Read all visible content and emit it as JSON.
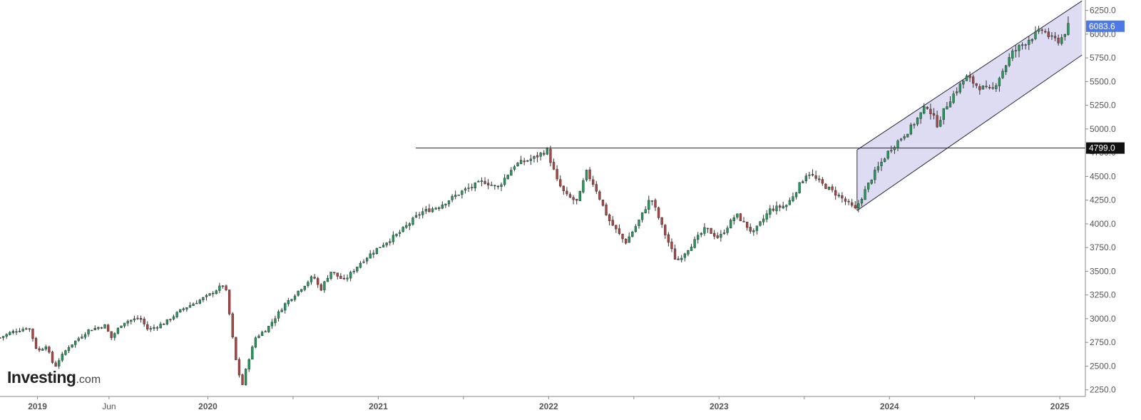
{
  "logo": {
    "main": "Investing",
    "suffix": ".com"
  },
  "colors": {
    "up": "#1e9e5a",
    "down": "#b3433e",
    "channel_fill": "#d8d6f0",
    "channel_line": "#2a2a3a",
    "hline": "#222222",
    "last_price_tag": "#4d79e8",
    "level_tag": "#111111",
    "grid_axis": "#888888"
  },
  "chart_data": {
    "type": "candlestick",
    "title": "",
    "xlabel": "",
    "ylabel": "",
    "ylim": [
      2180,
      6360
    ],
    "xlim": [
      2018.78,
      2025.15
    ],
    "y_ticks": [
      2250,
      2500,
      2750,
      3000,
      3250,
      3500,
      3750,
      4000,
      4250,
      4500,
      4750,
      5000,
      5250,
      5500,
      5750,
      6000,
      6250
    ],
    "y_tick_labels": [
      "2250.0",
      "2500.0",
      "2750.0",
      "3000.0",
      "3250.0",
      "3500.0",
      "3750.0",
      "4000.0",
      "4250.0",
      "4500.0",
      "4750.0",
      "5000.0",
      "5250.0",
      "5500.0",
      "5750.0",
      "6000.0",
      "6250.0"
    ],
    "x_ticks": [
      {
        "x": 2019.0,
        "label": "2019",
        "major": true
      },
      {
        "x": 2019.42,
        "label": "Jun",
        "major": false
      },
      {
        "x": 2020.0,
        "label": "2020",
        "major": true
      },
      {
        "x": 2020.5,
        "label": "",
        "major": false
      },
      {
        "x": 2021.0,
        "label": "2021",
        "major": true
      },
      {
        "x": 2021.5,
        "label": "",
        "major": false
      },
      {
        "x": 2022.0,
        "label": "2022",
        "major": true
      },
      {
        "x": 2022.5,
        "label": "",
        "major": false
      },
      {
        "x": 2023.0,
        "label": "2023",
        "major": true
      },
      {
        "x": 2023.5,
        "label": "",
        "major": false
      },
      {
        "x": 2024.0,
        "label": "2024",
        "major": true
      },
      {
        "x": 2024.5,
        "label": "",
        "major": false
      },
      {
        "x": 2025.0,
        "label": "2025",
        "major": true
      }
    ],
    "close_path": [
      [
        2018.78,
        2800
      ],
      [
        2018.85,
        2860
      ],
      [
        2018.95,
        2910
      ],
      [
        2019.0,
        2650
      ],
      [
        2019.05,
        2720
      ],
      [
        2019.1,
        2480
      ],
      [
        2019.12,
        2550
      ],
      [
        2019.18,
        2700
      ],
      [
        2019.3,
        2880
      ],
      [
        2019.4,
        2930
      ],
      [
        2019.43,
        2790
      ],
      [
        2019.5,
        2960
      ],
      [
        2019.6,
        3010
      ],
      [
        2019.65,
        2880
      ],
      [
        2019.75,
        2960
      ],
      [
        2019.85,
        3100
      ],
      [
        2020.0,
        3240
      ],
      [
        2020.1,
        3370
      ],
      [
        2020.13,
        3000
      ],
      [
        2020.16,
        2600
      ],
      [
        2020.2,
        2280
      ],
      [
        2020.23,
        2520
      ],
      [
        2020.28,
        2800
      ],
      [
        2020.35,
        2900
      ],
      [
        2020.45,
        3150
      ],
      [
        2020.62,
        3450
      ],
      [
        2020.66,
        3300
      ],
      [
        2020.72,
        3500
      ],
      [
        2020.8,
        3400
      ],
      [
        2020.9,
        3600
      ],
      [
        2021.0,
        3750
      ],
      [
        2021.12,
        3900
      ],
      [
        2021.25,
        4120
      ],
      [
        2021.35,
        4180
      ],
      [
        2021.5,
        4350
      ],
      [
        2021.62,
        4450
      ],
      [
        2021.7,
        4380
      ],
      [
        2021.8,
        4620
      ],
      [
        2021.92,
        4700
      ],
      [
        2021.99,
        4780
      ],
      [
        2022.05,
        4450
      ],
      [
        2022.1,
        4300
      ],
      [
        2022.17,
        4230
      ],
      [
        2022.22,
        4550
      ],
      [
        2022.27,
        4400
      ],
      [
        2022.35,
        4050
      ],
      [
        2022.45,
        3800
      ],
      [
        2022.52,
        4000
      ],
      [
        2022.6,
        4280
      ],
      [
        2022.67,
        3950
      ],
      [
        2022.75,
        3600
      ],
      [
        2022.8,
        3700
      ],
      [
        2022.92,
        3950
      ],
      [
        2023.0,
        3850
      ],
      [
        2023.1,
        4100
      ],
      [
        2023.2,
        3900
      ],
      [
        2023.3,
        4150
      ],
      [
        2023.4,
        4200
      ],
      [
        2023.52,
        4550
      ],
      [
        2023.58,
        4450
      ],
      [
        2023.7,
        4300
      ],
      [
        2023.8,
        4150
      ],
      [
        2023.9,
        4500
      ],
      [
        2024.0,
        4780
      ],
      [
        2024.12,
        5000
      ],
      [
        2024.22,
        5250
      ],
      [
        2024.28,
        5050
      ],
      [
        2024.35,
        5300
      ],
      [
        2024.45,
        5550
      ],
      [
        2024.52,
        5450
      ],
      [
        2024.6,
        5400
      ],
      [
        2024.72,
        5800
      ],
      [
        2024.82,
        5950
      ],
      [
        2024.9,
        6050
      ],
      [
        2024.95,
        5950
      ],
      [
        2025.0,
        5930
      ],
      [
        2025.05,
        6083
      ]
    ],
    "horizontal_level": {
      "y": 4799,
      "x_start": 2021.22,
      "label": "4799.0"
    },
    "channel": {
      "x_start": 2023.81,
      "x_end": 2025.13,
      "upper_start": 4780,
      "upper_end": 6350,
      "lower_start": 4140,
      "lower_end": 5780
    },
    "last_price": {
      "value": 6083.6,
      "label": "6083.6"
    }
  }
}
